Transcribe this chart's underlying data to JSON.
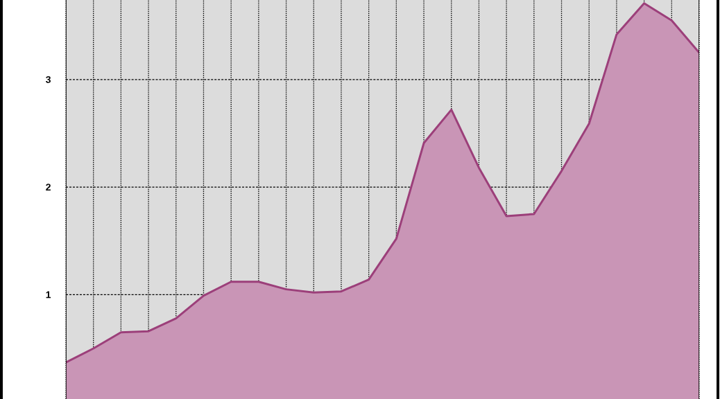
{
  "chart_data": {
    "type": "area",
    "categories": [
      null,
      null,
      null,
      null,
      null,
      null,
      null,
      null,
      null,
      null,
      null,
      null,
      null,
      null,
      null,
      null,
      null,
      null,
      null,
      null,
      null,
      null,
      null,
      null
    ],
    "values": [
      0.37,
      0.5,
      0.65,
      0.66,
      0.78,
      0.99,
      1.12,
      1.12,
      1.05,
      1.02,
      1.03,
      1.14,
      1.52,
      2.41,
      2.72,
      2.18,
      1.73,
      1.75,
      2.15,
      2.59,
      3.42,
      3.71,
      3.55,
      3.25
    ],
    "color": "#9c3f7a",
    "ylim": [
      0.03,
      3.74
    ],
    "yticks": [
      1,
      2,
      3
    ],
    "grid": true
  }
}
